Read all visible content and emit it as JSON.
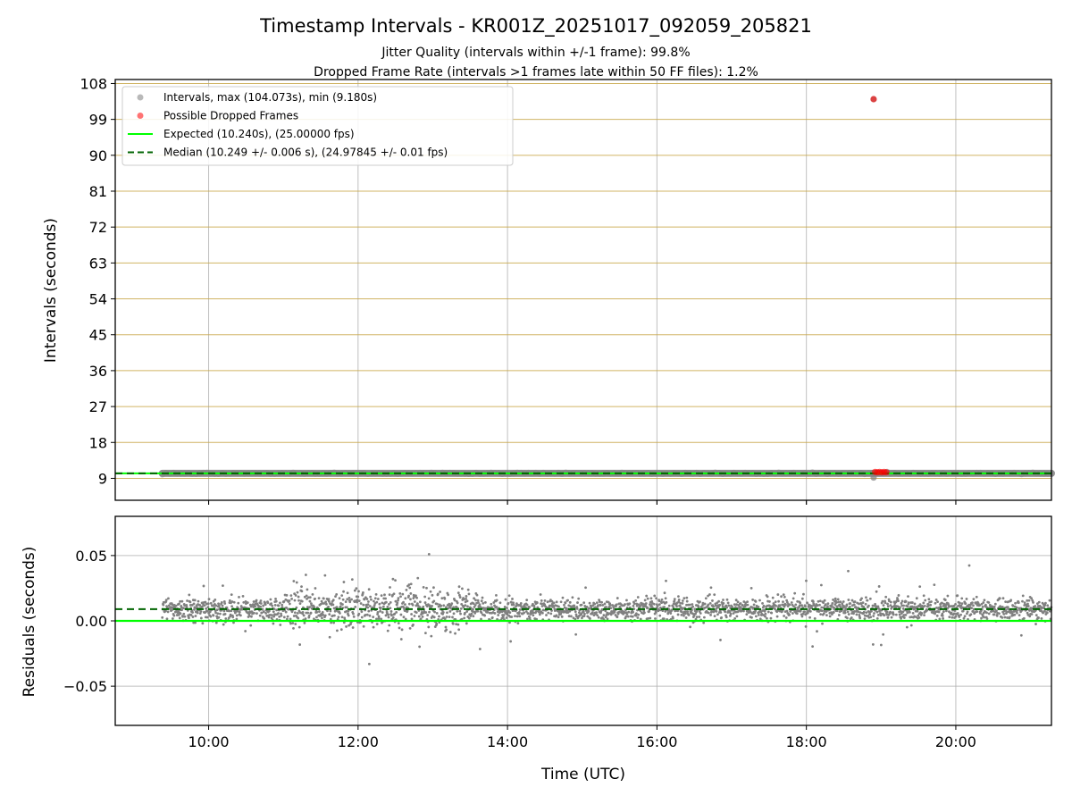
{
  "figure": {
    "title": "Timestamp Intervals - KR001Z_20251017_092059_205821",
    "subtitle_1": "Jitter Quality (intervals within +/-1 frame): 99.8%",
    "subtitle_2": "Dropped Frame Rate (intervals >1 frames late within 50 FF files): 1.2%"
  },
  "colors": {
    "intervals": "#808080",
    "dropped": "#ff0000",
    "expected": "#00ff00",
    "median": "#006400",
    "top_grid": "#c8a84a",
    "grid": "#b0b0b0"
  },
  "chart_data": [
    {
      "type": "scatter",
      "xlabel": "",
      "ylabel": "Intervals (seconds)",
      "xlim_hours": [
        8.75,
        21.28
      ],
      "ylim": [
        3.5,
        109
      ],
      "yticks": [
        9,
        18,
        27,
        36,
        45,
        54,
        63,
        72,
        81,
        90,
        99,
        108
      ],
      "xticks": [
        "10:00",
        "12:00",
        "14:00",
        "16:00",
        "18:00",
        "20:00"
      ],
      "grid": true,
      "legend_position": "upper-left",
      "legend": [
        {
          "kind": "marker",
          "color": "#808080",
          "label": "Intervals, max (104.073s), min (9.180s)"
        },
        {
          "kind": "marker",
          "color": "#ff0000",
          "label": "Possible Dropped Frames"
        },
        {
          "kind": "line",
          "color": "#00ff00",
          "label": "Expected (10.240s), (25.00000 fps)"
        },
        {
          "kind": "dashed",
          "color": "#006400",
          "label": "Median (10.249 +/- 0.006 s), (24.97845 +/- 0.01 fps)"
        }
      ],
      "series": [
        {
          "name": "Intervals, max (104.073s), min (9.180s)",
          "x_range_hours": [
            9.38,
            21.28
          ],
          "typical_value": 10.249,
          "max": 104.073,
          "min": 9.18,
          "outliers": [
            {
              "x": 18.9,
              "y": 9.18
            },
            {
              "x": 18.9,
              "y": 104.073
            }
          ]
        },
        {
          "name": "Possible Dropped Frames",
          "points": [
            {
              "x": 18.9,
              "y": 104.073
            },
            {
              "x": 18.92,
              "y": 10.6
            },
            {
              "x": 18.95,
              "y": 10.5
            },
            {
              "x": 18.98,
              "y": 10.6
            },
            {
              "x": 19.01,
              "y": 10.5
            },
            {
              "x": 19.04,
              "y": 10.6
            },
            {
              "x": 19.07,
              "y": 10.5
            }
          ]
        },
        {
          "name": "Expected (10.240s), (25.00000 fps)",
          "value": 10.24
        },
        {
          "name": "Median (10.249 +/- 0.006 s), (24.97845 +/- 0.01 fps)",
          "value": 10.249
        }
      ]
    },
    {
      "type": "scatter",
      "xlabel": "Time (UTC)",
      "ylabel": "Residuals (seconds)",
      "xlim_hours": [
        8.75,
        21.28
      ],
      "ylim": [
        -0.08,
        0.08
      ],
      "yticks": [
        -0.05,
        0.0,
        0.05
      ],
      "ytick_labels": [
        "−0.05",
        "0.00",
        "0.05"
      ],
      "xticks": [
        "10:00",
        "12:00",
        "14:00",
        "16:00",
        "18:00",
        "20:00"
      ],
      "grid": true,
      "series": [
        {
          "name": "residuals",
          "x_range_hours": [
            9.38,
            21.28
          ],
          "band_center": 0.009,
          "band_spread": 0.006,
          "max": 0.051,
          "min": -0.033,
          "noisier_period_hours": [
            11.0,
            13.5
          ]
        },
        {
          "name": "expected",
          "value": 0.0
        },
        {
          "name": "median",
          "value": 0.009
        }
      ]
    }
  ]
}
